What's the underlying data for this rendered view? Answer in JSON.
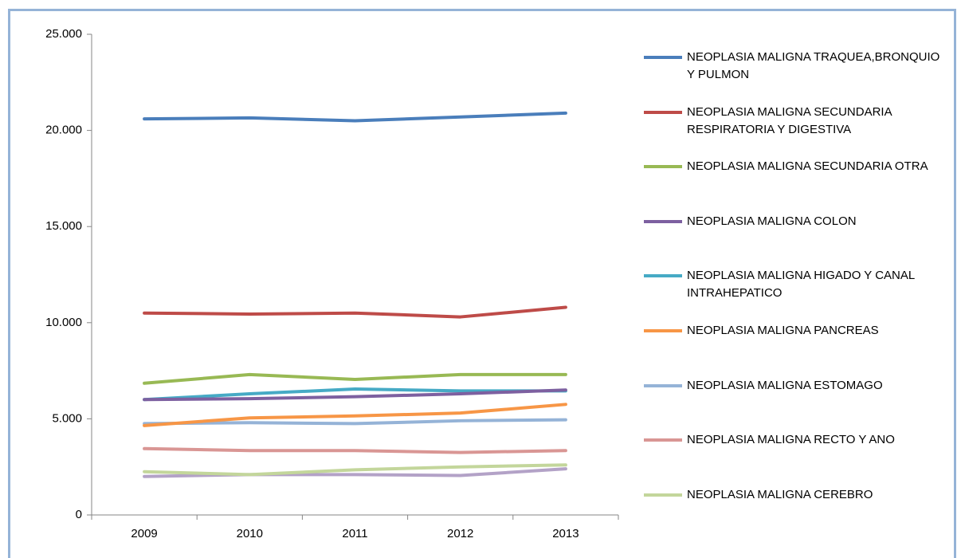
{
  "chart_data": {
    "type": "line",
    "categories": [
      "2009",
      "2010",
      "2011",
      "2012",
      "2013"
    ],
    "ylim": [
      0,
      25000
    ],
    "yticks": [
      0,
      {
        "value": 5000,
        "label": "5.000"
      },
      {
        "value": 10000,
        "label": "10.000"
      },
      {
        "value": 15000,
        "label": "15.000"
      },
      {
        "value": 20000,
        "label": "20.000"
      },
      {
        "value": 25000,
        "label": "25.000"
      }
    ],
    "series": [
      {
        "name": "NEOPLASIA MALIGNA TRAQUEA,BRONQUIO Y PULMON",
        "color": "#4a7ebb",
        "values": [
          20600,
          20650,
          20500,
          20700,
          20900
        ]
      },
      {
        "name": "NEOPLASIA MALIGNA SECUNDARIA RESPIRATORIA Y DIGESTIVA",
        "color": "#be4b48",
        "values": [
          10500,
          10450,
          10500,
          10300,
          10800
        ]
      },
      {
        "name": "NEOPLASIA MALIGNA SECUNDARIA OTRA",
        "color": "#98b954",
        "values": [
          6850,
          7300,
          7050,
          7300,
          7300
        ]
      },
      {
        "name": "NEOPLASIA MALIGNA COLON",
        "color": "#7d60a0",
        "values": [
          6000,
          6050,
          6150,
          6300,
          6500
        ]
      },
      {
        "name": "NEOPLASIA MALIGNA HIGADO Y CANAL INTRAHEPATICO",
        "color": "#46aac5",
        "values": [
          6000,
          6300,
          6550,
          6450,
          6450
        ]
      },
      {
        "name": "NEOPLASIA MALIGNA PANCREAS",
        "color": "#f79646",
        "values": [
          4650,
          5050,
          5150,
          5300,
          5750
        ]
      },
      {
        "name": "NEOPLASIA MALIGNA ESTOMAGO",
        "color": "#95b3d7",
        "values": [
          4750,
          4800,
          4750,
          4900,
          4950
        ]
      },
      {
        "name": "NEOPLASIA MALIGNA RECTO Y ANO",
        "color": "#d99694",
        "values": [
          3450,
          3350,
          3350,
          3250,
          3350
        ]
      },
      {
        "name": "NEOPLASIA MALIGNA CEREBRO",
        "color": "#c3d69b",
        "values": [
          2250,
          2100,
          2350,
          2500,
          2600
        ]
      },
      {
        "color": "#b3a2c7",
        "values": [
          2000,
          2100,
          2100,
          2050,
          2400
        ]
      }
    ]
  }
}
